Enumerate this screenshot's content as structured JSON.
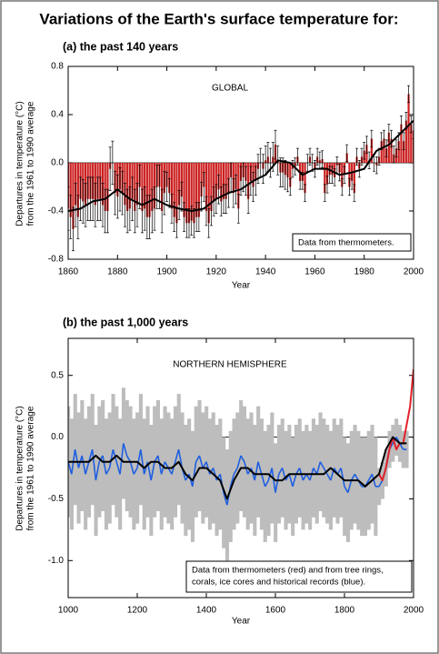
{
  "title": "Variations of the Earth's surface temperature for:",
  "chart_data": [
    {
      "type": "bar",
      "title": "(a) the past 140 years",
      "annotation": "GLOBAL",
      "note": [
        "Data from thermometers."
      ],
      "ylabel": [
        "Departures in temperature (°C)",
        "from the 1961 to 1990 average"
      ],
      "xlabel": "Year",
      "xlim": [
        1860,
        2000
      ],
      "xticks": [
        1860,
        1880,
        1900,
        1920,
        1940,
        1960,
        1980,
        2000
      ],
      "ylim": [
        -0.8,
        0.8
      ],
      "yticks": [
        0.8,
        0.4,
        {
          "value": 0,
          "label": "0.0"
        },
        -0.4,
        -0.8
      ],
      "series": [
        {
          "type": "bar",
          "color": "#cc1f1f",
          "x": [
            1860,
            1861,
            1862,
            1863,
            1864,
            1865,
            1866,
            1867,
            1868,
            1869,
            1870,
            1871,
            1872,
            1873,
            1874,
            1875,
            1876,
            1877,
            1878,
            1879,
            1880,
            1881,
            1882,
            1883,
            1884,
            1885,
            1886,
            1887,
            1888,
            1889,
            1890,
            1891,
            1892,
            1893,
            1894,
            1895,
            1896,
            1897,
            1898,
            1899,
            1900,
            1901,
            1902,
            1903,
            1904,
            1905,
            1906,
            1907,
            1908,
            1909,
            1910,
            1911,
            1912,
            1913,
            1914,
            1915,
            1916,
            1917,
            1918,
            1919,
            1920,
            1921,
            1922,
            1923,
            1924,
            1925,
            1926,
            1927,
            1928,
            1929,
            1930,
            1931,
            1932,
            1933,
            1934,
            1935,
            1936,
            1937,
            1938,
            1939,
            1940,
            1941,
            1942,
            1943,
            1944,
            1945,
            1946,
            1947,
            1948,
            1949,
            1950,
            1951,
            1952,
            1953,
            1954,
            1955,
            1956,
            1957,
            1958,
            1959,
            1960,
            1961,
            1962,
            1963,
            1964,
            1965,
            1966,
            1967,
            1968,
            1969,
            1970,
            1971,
            1972,
            1973,
            1974,
            1975,
            1976,
            1977,
            1978,
            1979,
            1980,
            1981,
            1982,
            1983,
            1984,
            1985,
            1986,
            1987,
            1988,
            1989,
            1990,
            1991,
            1992,
            1993,
            1994,
            1995,
            1996,
            1997,
            1998,
            1999,
            2000
          ],
          "values": [
            -0.38,
            -0.45,
            -0.55,
            -0.35,
            -0.45,
            -0.3,
            -0.32,
            -0.35,
            -0.3,
            -0.3,
            -0.3,
            -0.35,
            -0.3,
            -0.3,
            -0.35,
            -0.4,
            -0.4,
            -0.05,
            0.0,
            -0.25,
            -0.28,
            -0.22,
            -0.25,
            -0.35,
            -0.4,
            -0.38,
            -0.3,
            -0.4,
            -0.35,
            -0.2,
            -0.4,
            -0.38,
            -0.45,
            -0.45,
            -0.4,
            -0.38,
            -0.2,
            -0.2,
            -0.4,
            -0.25,
            -0.2,
            -0.25,
            -0.38,
            -0.45,
            -0.5,
            -0.35,
            -0.28,
            -0.45,
            -0.5,
            -0.5,
            -0.48,
            -0.5,
            -0.45,
            -0.45,
            -0.28,
            -0.2,
            -0.4,
            -0.5,
            -0.4,
            -0.32,
            -0.3,
            -0.22,
            -0.32,
            -0.3,
            -0.3,
            -0.25,
            -0.12,
            -0.25,
            -0.22,
            -0.38,
            -0.15,
            -0.12,
            -0.15,
            -0.3,
            -0.15,
            -0.2,
            -0.15,
            -0.05,
            0.0,
            -0.05,
            0.02,
            0.05,
            0.0,
            0.05,
            0.15,
            0.02,
            -0.08,
            -0.08,
            -0.1,
            -0.12,
            -0.2,
            -0.05,
            -0.03,
            0.05,
            -0.15,
            -0.15,
            -0.25,
            0.0,
            0.05,
            0.0,
            -0.05,
            0.05,
            0.02,
            0.03,
            -0.25,
            -0.18,
            -0.1,
            -0.1,
            -0.12,
            -0.02,
            -0.08,
            -0.2,
            -0.1,
            0.08,
            -0.2,
            -0.15,
            -0.25,
            0.05,
            -0.05,
            0.05,
            0.1,
            0.15,
            0.02,
            0.2,
            0.0,
            -0.02,
            0.05,
            0.18,
            0.2,
            0.12,
            0.25,
            0.2,
            0.07,
            0.12,
            0.18,
            0.32,
            0.18,
            0.35,
            0.57,
            0.32,
            0.27
          ],
          "errors": [
            0.18,
            0.18,
            0.18,
            0.18,
            0.18,
            0.18,
            0.18,
            0.18,
            0.18,
            0.18,
            0.18,
            0.18,
            0.18,
            0.18,
            0.18,
            0.18,
            0.18,
            0.18,
            0.18,
            0.18,
            0.18,
            0.18,
            0.18,
            0.18,
            0.18,
            0.18,
            0.18,
            0.18,
            0.18,
            0.18,
            0.18,
            0.18,
            0.18,
            0.18,
            0.18,
            0.18,
            0.18,
            0.18,
            0.18,
            0.18,
            0.12,
            0.12,
            0.12,
            0.12,
            0.12,
            0.12,
            0.12,
            0.12,
            0.12,
            0.12,
            0.12,
            0.12,
            0.12,
            0.12,
            0.12,
            0.12,
            0.12,
            0.12,
            0.12,
            0.12,
            0.12,
            0.12,
            0.12,
            0.12,
            0.12,
            0.12,
            0.12,
            0.12,
            0.12,
            0.12,
            0.12,
            0.12,
            0.12,
            0.12,
            0.12,
            0.12,
            0.12,
            0.12,
            0.12,
            0.12,
            0.12,
            0.12,
            0.12,
            0.12,
            0.12,
            0.12,
            0.12,
            0.12,
            0.12,
            0.12,
            0.07,
            0.07,
            0.07,
            0.07,
            0.07,
            0.07,
            0.07,
            0.07,
            0.07,
            0.07,
            0.07,
            0.07,
            0.07,
            0.07,
            0.07,
            0.07,
            0.07,
            0.07,
            0.07,
            0.07,
            0.07,
            0.07,
            0.07,
            0.07,
            0.07,
            0.07,
            0.07,
            0.07,
            0.07,
            0.07,
            0.07,
            0.07,
            0.07,
            0.07,
            0.07,
            0.07,
            0.07,
            0.07,
            0.07,
            0.07,
            0.07,
            0.07,
            0.07,
            0.07,
            0.07,
            0.07,
            0.07,
            0.07,
            0.07,
            0.07,
            0.07
          ]
        },
        {
          "type": "line",
          "color": "#000000",
          "x": [
            1860,
            1865,
            1870,
            1875,
            1880,
            1885,
            1890,
            1895,
            1900,
            1905,
            1910,
            1915,
            1920,
            1925,
            1930,
            1935,
            1940,
            1945,
            1950,
            1955,
            1960,
            1965,
            1970,
            1975,
            1980,
            1985,
            1990,
            1995,
            2000
          ],
          "values": [
            -0.4,
            -0.38,
            -0.32,
            -0.3,
            -0.22,
            -0.3,
            -0.35,
            -0.3,
            -0.35,
            -0.38,
            -0.4,
            -0.38,
            -0.3,
            -0.25,
            -0.22,
            -0.15,
            -0.1,
            0.02,
            0.0,
            -0.1,
            -0.05,
            -0.05,
            -0.1,
            -0.08,
            -0.05,
            0.1,
            0.15,
            0.25,
            0.35
          ]
        }
      ]
    },
    {
      "type": "line",
      "title": "(b) the past 1,000 years",
      "annotation": "NORTHERN HEMISPHERE",
      "note": [
        "Data from thermometers (red) and from tree rings,",
        "corals, ice cores and historical records (blue)."
      ],
      "ylabel": [
        "Departures in temperature (°C)",
        "from the 1961 to 1990 average"
      ],
      "xlabel": "Year",
      "xlim": [
        1000,
        2000
      ],
      "xticks": [
        1000,
        1200,
        1400,
        1600,
        1800,
        2000
      ],
      "ylim": [
        -1.3,
        0.8
      ],
      "yticks": [
        0.5,
        {
          "value": 0,
          "label": "0.0"
        },
        -0.5,
        {
          "value": -1,
          "label": "-1.0"
        }
      ],
      "series": [
        {
          "type": "errorband",
          "color": "#1f5fe0",
          "band_color": "#bdbdbd",
          "x": [
            1000,
            1010,
            1020,
            1030,
            1040,
            1050,
            1060,
            1070,
            1080,
            1090,
            1100,
            1110,
            1120,
            1130,
            1140,
            1150,
            1160,
            1170,
            1180,
            1190,
            1200,
            1210,
            1220,
            1230,
            1240,
            1250,
            1260,
            1270,
            1280,
            1290,
            1300,
            1310,
            1320,
            1330,
            1340,
            1350,
            1360,
            1370,
            1380,
            1390,
            1400,
            1410,
            1420,
            1430,
            1440,
            1450,
            1460,
            1470,
            1480,
            1490,
            1500,
            1510,
            1520,
            1530,
            1540,
            1550,
            1560,
            1570,
            1580,
            1590,
            1600,
            1610,
            1620,
            1630,
            1640,
            1650,
            1660,
            1670,
            1680,
            1690,
            1700,
            1710,
            1720,
            1730,
            1740,
            1750,
            1760,
            1770,
            1780,
            1790,
            1800,
            1810,
            1820,
            1830,
            1840,
            1850,
            1860,
            1870,
            1880,
            1890,
            1900,
            1910,
            1920,
            1930,
            1940,
            1950,
            1960,
            1970,
            1980
          ],
          "values": [
            -0.2,
            -0.3,
            -0.1,
            -0.25,
            -0.15,
            -0.3,
            -0.2,
            -0.1,
            -0.35,
            -0.2,
            -0.15,
            -0.3,
            -0.25,
            -0.1,
            -0.2,
            -0.3,
            -0.05,
            -0.15,
            -0.2,
            -0.3,
            -0.25,
            -0.1,
            -0.3,
            -0.2,
            -0.35,
            -0.2,
            -0.15,
            -0.3,
            -0.2,
            -0.25,
            -0.3,
            -0.2,
            -0.1,
            -0.25,
            -0.35,
            -0.3,
            -0.4,
            -0.2,
            -0.15,
            -0.25,
            -0.2,
            -0.3,
            -0.25,
            -0.35,
            -0.3,
            -0.45,
            -0.55,
            -0.4,
            -0.3,
            -0.25,
            -0.15,
            -0.2,
            -0.3,
            -0.25,
            -0.35,
            -0.2,
            -0.3,
            -0.4,
            -0.35,
            -0.25,
            -0.45,
            -0.3,
            -0.25,
            -0.35,
            -0.3,
            -0.4,
            -0.3,
            -0.25,
            -0.35,
            -0.3,
            -0.35,
            -0.25,
            -0.3,
            -0.2,
            -0.25,
            -0.3,
            -0.35,
            -0.25,
            -0.3,
            -0.25,
            -0.4,
            -0.45,
            -0.35,
            -0.3,
            -0.35,
            -0.4,
            -0.4,
            -0.35,
            -0.3,
            -0.4,
            -0.4,
            -0.35,
            -0.25,
            -0.1,
            -0.05,
            0.0,
            -0.05,
            -0.1,
            -0.1
          ],
          "errors": [
            0.45,
            0.45,
            0.45,
            0.45,
            0.45,
            0.45,
            0.45,
            0.45,
            0.45,
            0.45,
            0.45,
            0.45,
            0.45,
            0.45,
            0.45,
            0.45,
            0.45,
            0.45,
            0.45,
            0.45,
            0.45,
            0.45,
            0.45,
            0.45,
            0.45,
            0.45,
            0.45,
            0.45,
            0.45,
            0.45,
            0.45,
            0.45,
            0.45,
            0.45,
            0.45,
            0.45,
            0.45,
            0.45,
            0.45,
            0.45,
            0.45,
            0.45,
            0.45,
            0.45,
            0.45,
            0.45,
            0.45,
            0.45,
            0.45,
            0.45,
            0.45,
            0.45,
            0.45,
            0.45,
            0.45,
            0.45,
            0.45,
            0.45,
            0.45,
            0.45,
            0.4,
            0.4,
            0.4,
            0.4,
            0.4,
            0.4,
            0.4,
            0.4,
            0.4,
            0.4,
            0.4,
            0.4,
            0.4,
            0.4,
            0.4,
            0.4,
            0.4,
            0.4,
            0.4,
            0.4,
            0.4,
            0.4,
            0.4,
            0.4,
            0.4,
            0.4,
            0.4,
            0.4,
            0.4,
            0.4,
            0.15,
            0.15,
            0.15,
            0.15,
            0.15,
            0.15,
            0.15,
            0.15,
            0.15
          ]
        },
        {
          "type": "line",
          "color": "#e0202a",
          "x": [
            1900,
            1910,
            1920,
            1930,
            1940,
            1950,
            1960,
            1970,
            1980,
            1990,
            2000
          ],
          "values": [
            -0.3,
            -0.35,
            -0.25,
            -0.1,
            0.0,
            -0.1,
            -0.05,
            -0.05,
            0.1,
            0.25,
            0.55
          ]
        },
        {
          "type": "line",
          "color": "#000000",
          "x": [
            1000,
            1020,
            1040,
            1060,
            1080,
            1100,
            1120,
            1140,
            1160,
            1180,
            1200,
            1220,
            1240,
            1260,
            1280,
            1300,
            1320,
            1340,
            1360,
            1380,
            1400,
            1420,
            1440,
            1460,
            1480,
            1500,
            1520,
            1540,
            1560,
            1580,
            1600,
            1620,
            1640,
            1660,
            1680,
            1700,
            1720,
            1740,
            1760,
            1780,
            1800,
            1820,
            1840,
            1860,
            1880,
            1900,
            1920,
            1940,
            1960,
            1980
          ],
          "values": [
            -0.2,
            -0.2,
            -0.2,
            -0.2,
            -0.15,
            -0.2,
            -0.2,
            -0.15,
            -0.2,
            -0.2,
            -0.2,
            -0.25,
            -0.2,
            -0.2,
            -0.25,
            -0.25,
            -0.2,
            -0.3,
            -0.35,
            -0.25,
            -0.25,
            -0.3,
            -0.35,
            -0.5,
            -0.35,
            -0.25,
            -0.25,
            -0.3,
            -0.3,
            -0.3,
            -0.35,
            -0.35,
            -0.3,
            -0.3,
            -0.3,
            -0.3,
            -0.3,
            -0.3,
            -0.25,
            -0.3,
            -0.35,
            -0.35,
            -0.35,
            -0.4,
            -0.35,
            -0.3,
            -0.1,
            0.0,
            -0.05,
            -0.05
          ]
        }
      ]
    }
  ]
}
